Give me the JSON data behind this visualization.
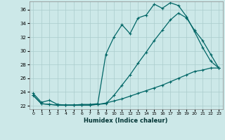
{
  "title": "",
  "xlabel": "Humidex (Indice chaleur)",
  "bg_color": "#cce8e8",
  "grid_color": "#aacccc",
  "line_color": "#006666",
  "xlim": [
    -0.5,
    23.5
  ],
  "ylim": [
    21.5,
    37.2
  ],
  "xticks": [
    0,
    1,
    2,
    3,
    4,
    5,
    6,
    7,
    8,
    9,
    10,
    11,
    12,
    13,
    14,
    15,
    16,
    17,
    18,
    19,
    20,
    21,
    22,
    23
  ],
  "yticks": [
    22,
    24,
    26,
    28,
    30,
    32,
    34,
    36
  ],
  "line1_x": [
    0,
    1,
    2,
    3,
    4,
    5,
    6,
    7,
    8,
    9,
    10,
    11,
    12,
    13,
    14,
    15,
    16,
    17,
    18,
    19,
    20,
    21,
    22,
    23
  ],
  "line1_y": [
    23.8,
    22.5,
    22.8,
    22.2,
    22.1,
    22.1,
    22.2,
    22.2,
    22.3,
    29.5,
    32.0,
    33.8,
    32.5,
    34.8,
    35.2,
    36.8,
    36.2,
    37.0,
    36.6,
    35.0,
    32.8,
    30.5,
    28.5,
    27.5
  ],
  "line2_x": [
    0,
    1,
    2,
    3,
    4,
    5,
    6,
    7,
    8,
    9,
    10,
    11,
    12,
    13,
    14,
    15,
    16,
    17,
    18,
    19,
    20,
    21,
    22,
    23
  ],
  "line2_y": [
    23.5,
    22.3,
    22.2,
    22.1,
    22.1,
    22.1,
    22.1,
    22.1,
    22.2,
    22.3,
    23.5,
    25.0,
    26.5,
    28.2,
    29.8,
    31.5,
    33.0,
    34.5,
    35.5,
    34.8,
    33.0,
    31.5,
    29.5,
    27.5
  ],
  "line3_x": [
    0,
    1,
    2,
    3,
    4,
    5,
    6,
    7,
    8,
    9,
    10,
    11,
    12,
    13,
    14,
    15,
    16,
    17,
    18,
    19,
    20,
    21,
    22,
    23
  ],
  "line3_y": [
    23.5,
    22.3,
    22.2,
    22.1,
    22.1,
    22.1,
    22.1,
    22.1,
    22.2,
    22.4,
    22.7,
    23.0,
    23.4,
    23.8,
    24.2,
    24.6,
    25.0,
    25.5,
    26.0,
    26.5,
    27.0,
    27.2,
    27.5,
    27.5
  ]
}
